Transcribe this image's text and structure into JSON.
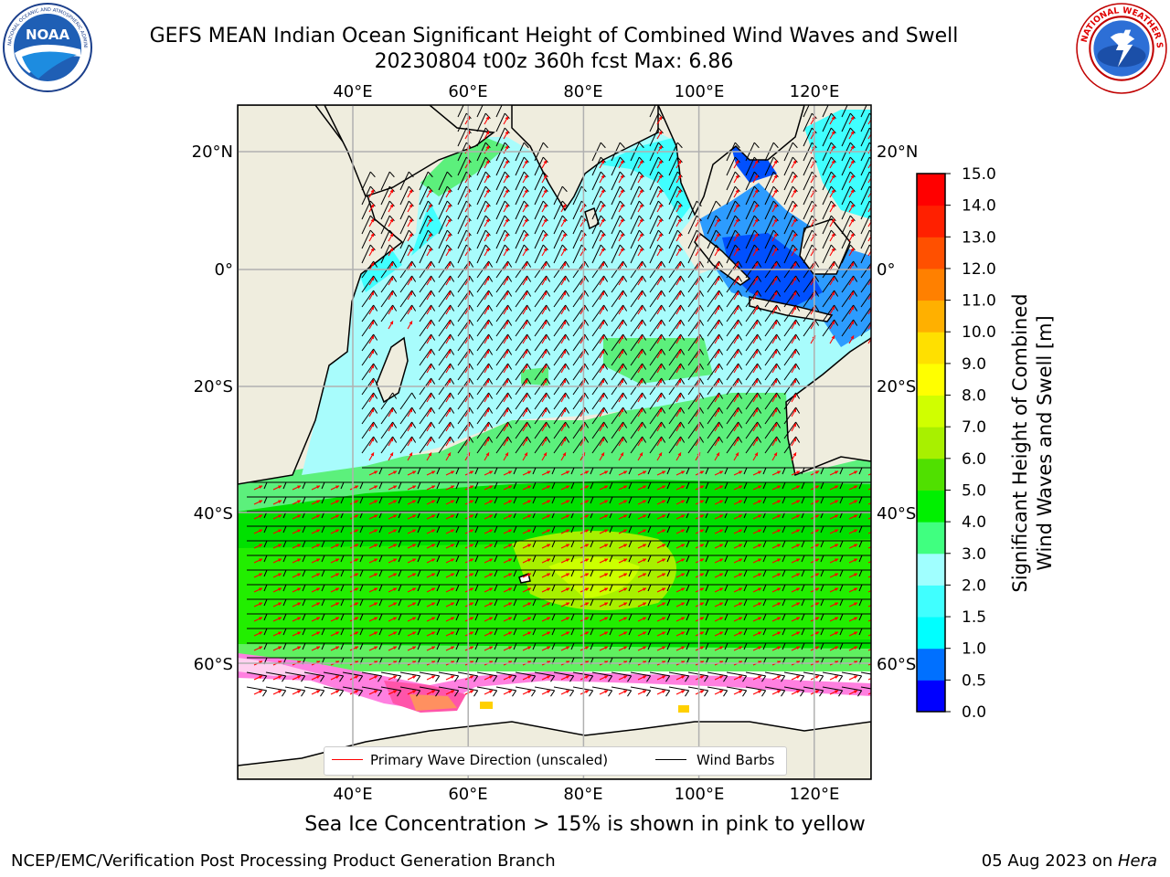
{
  "title": {
    "line1": "GEFS MEAN Indian Ocean Significant Height of Combined Wind Waves and Swell",
    "line2": "20230804 t00z 360h fcst   Max: 6.86"
  },
  "logos": {
    "left": {
      "icon": "noaa-logo-icon",
      "text": "NOAA",
      "ring_text": "NATIONAL OCEANIC AND ATMOSPHERIC ADMINISTRATION · U.S. DEPARTMENT OF COMMERCE"
    },
    "right": {
      "icon": "nws-logo-icon",
      "ring_text": "NATIONAL WEATHER SERVICE"
    }
  },
  "map": {
    "lon_ticks": [
      "40°E",
      "60°E",
      "80°E",
      "100°E",
      "120°E"
    ],
    "lon_values": [
      40,
      60,
      80,
      100,
      120
    ],
    "lat_ticks_left": [
      "20°N",
      "0°",
      "20°S",
      "40°S",
      "60°S"
    ],
    "lat_ticks_right": [
      "20°N",
      "0°",
      "20°S",
      "40°S",
      "60°S"
    ],
    "lat_values": [
      20,
      0,
      -20,
      -40,
      -60
    ],
    "extent": {
      "lon_min": 20,
      "lon_max": 130,
      "lat_min": -75,
      "lat_max": 28
    },
    "projection": "mercator",
    "land_color": "#efedde",
    "grid": true
  },
  "legend": {
    "wave_label": "Primary Wave Direction (unscaled)",
    "wave_color": "#ff0000",
    "wind_label": "Wind Barbs",
    "wind_color": "#000000"
  },
  "colorbar": {
    "label_line1": "Significant Height of Combined",
    "label_line2": "Wind Waves and Swell [m]",
    "tick_labels": [
      "0.0",
      "0.5",
      "1.0",
      "1.5",
      "2.0",
      "3.0",
      "4.0",
      "5.0",
      "6.0",
      "7.0",
      "8.0",
      "9.0",
      "10.0",
      "11.0",
      "12.0",
      "13.0",
      "14.0",
      "15.0"
    ],
    "colors": [
      "#0000ff",
      "#0070ff",
      "#00ffff",
      "#40ffff",
      "#a0ffff",
      "#40ff80",
      "#00f000",
      "#50e000",
      "#a8f000",
      "#d0ff00",
      "#ffff00",
      "#ffe000",
      "#ffb000",
      "#ff8000",
      "#ff5000",
      "#ff2000",
      "#ff0000"
    ]
  },
  "captions": {
    "ice": "Sea Ice Concentration > 15% is shown in pink to yellow",
    "footer_left": "NCEP/EMC/Verification Post Processing Product Generation Branch",
    "footer_right_date": "05 Aug 2023 on ",
    "footer_right_host": "Hera"
  }
}
